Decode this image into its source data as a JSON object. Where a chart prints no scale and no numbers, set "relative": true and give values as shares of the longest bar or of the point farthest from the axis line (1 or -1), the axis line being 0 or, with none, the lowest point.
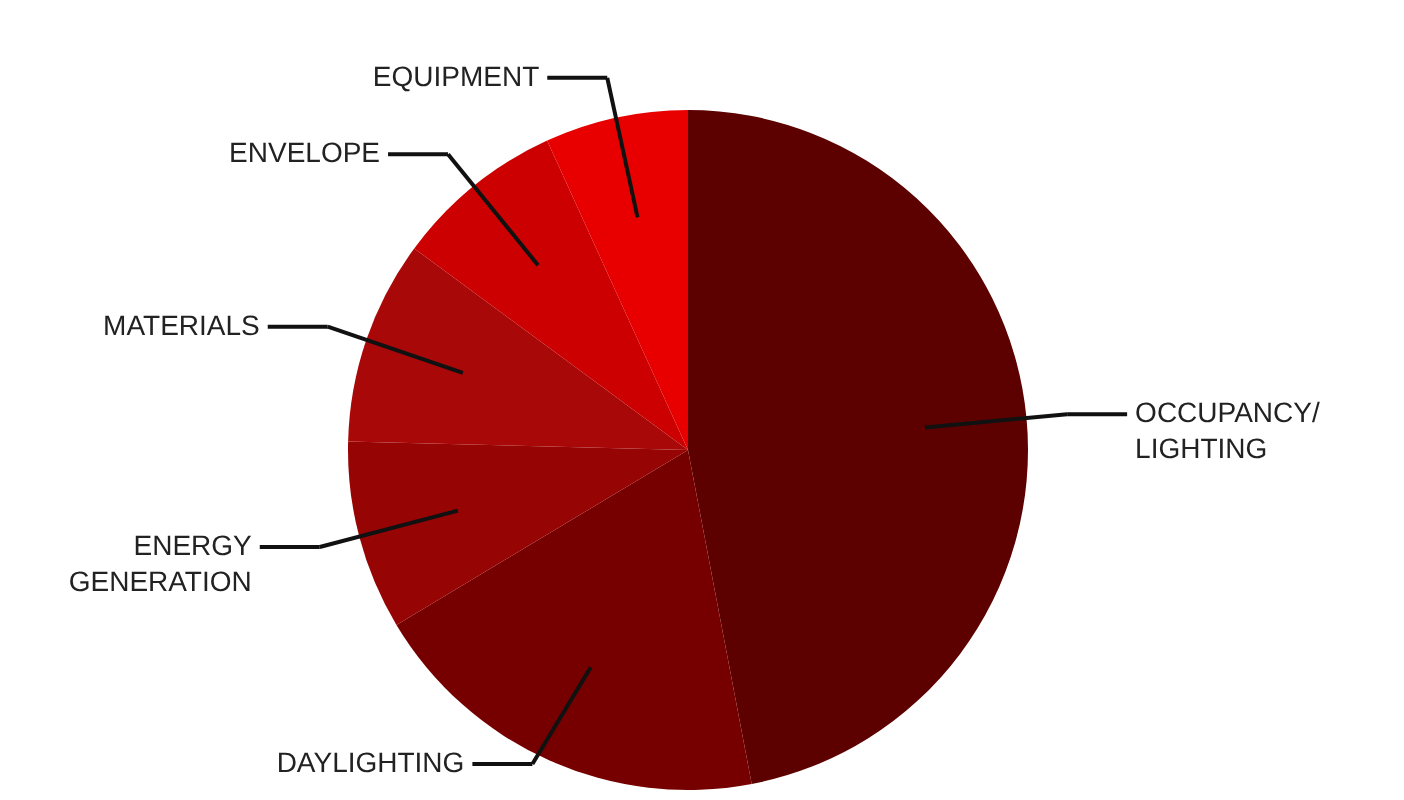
{
  "chart_data": {
    "type": "pie",
    "relative": true,
    "categories": [
      "OCCUPANCY/ LIGHTING",
      "DAYLIGHTING",
      "ENERGY GENERATION",
      "MATERIALS",
      "ENVELOPE",
      "EQUIPMENT"
    ],
    "values": [
      47,
      19.4,
      9,
      9.7,
      8.1,
      6.8
    ],
    "colors": [
      "#5c0000",
      "#760000",
      "#960404",
      "#a80808",
      "#cc0000",
      "#e80000"
    ]
  }
}
